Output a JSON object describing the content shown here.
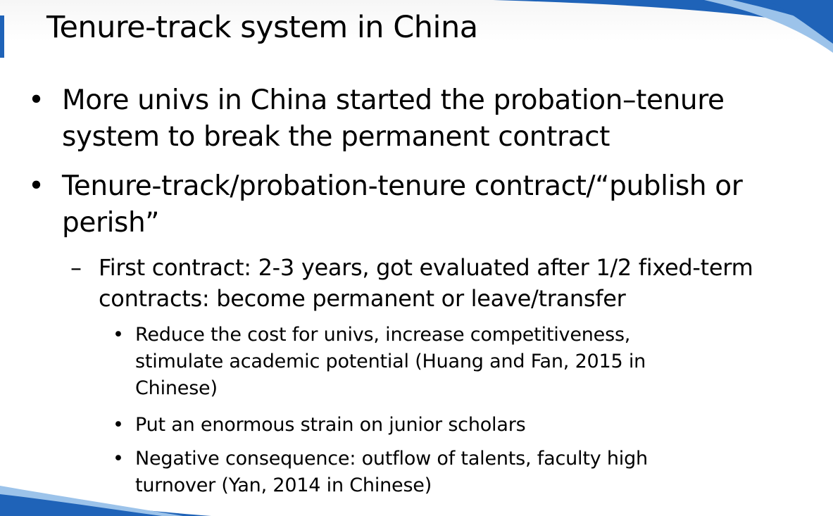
{
  "slide": {
    "title": "Tenure-track system in China",
    "bullets": [
      {
        "marker": "•",
        "text": "More univs in China started the probation–tenure system to break the permanent contract"
      },
      {
        "marker": "•",
        "text": "Tenure-track/probation-tenure contract/“publish or perish”",
        "sub": [
          {
            "marker": "–",
            "text": "First contract: 2-3 years, got evaluated after 1/2 fixed-term contracts: become permanent or leave/transfer",
            "sub": [
              {
                "marker": "•",
                "text": "Reduce the cost for univs, increase competitiveness, stimulate academic potential (Huang and Fan, 2015 in Chinese)"
              },
              {
                "marker": "•",
                "text": "Put an enormous strain on junior scholars"
              },
              {
                "marker": "•",
                "text": "Negative consequence: outflow of talents, faculty high turnover (Yan, 2014 in Chinese)"
              }
            ]
          }
        ]
      }
    ]
  },
  "colors": {
    "accent_blue": "#1f63b8",
    "swoosh_light": "#9cc3ea",
    "text": "#000000",
    "background": "#ffffff"
  }
}
